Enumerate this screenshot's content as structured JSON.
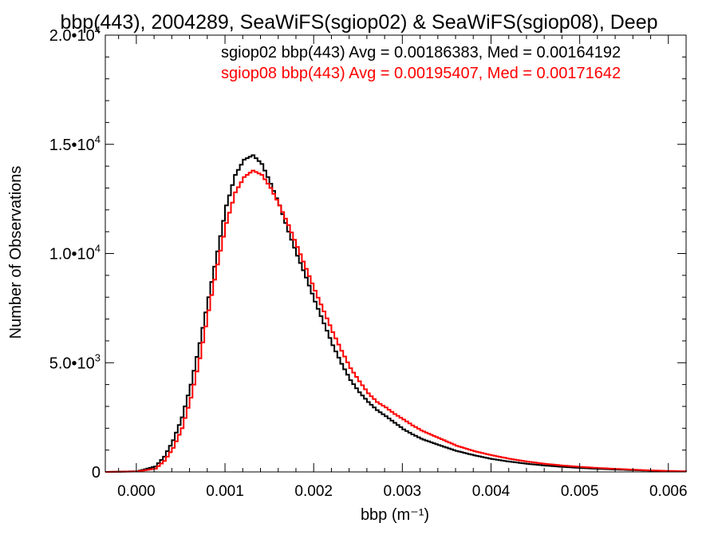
{
  "chart_data": {
    "type": "line",
    "title": "bbp(443), 2004289, SeaWiFS(sgiop02) & SeaWiFS(sgiop08), Deep",
    "xlabel": "bbp (m⁻¹)",
    "ylabel": "Number of Observations",
    "xlim": [
      -0.00035,
      0.0062
    ],
    "ylim": [
      0,
      20000
    ],
    "x_ticks": [
      0.0,
      0.001,
      0.002,
      0.003,
      0.004,
      0.005,
      0.006
    ],
    "x_tick_labels": [
      "0.000",
      "0.001",
      "0.002",
      "0.003",
      "0.004",
      "0.005",
      "0.006"
    ],
    "y_ticks": [
      0,
      5000,
      10000,
      15000,
      20000
    ],
    "y_tick_labels": [
      {
        "base": "0",
        "exp": ""
      },
      {
        "base": "5.0•10",
        "exp": "3"
      },
      {
        "base": "1.0•10",
        "exp": "4"
      },
      {
        "base": "1.5•10",
        "exp": "4"
      },
      {
        "base": "2.0•10",
        "exp": "4"
      }
    ],
    "step": true,
    "grid": false,
    "legend_position": "top-right",
    "series": [
      {
        "name": "sgiop02 bbp(443) Avg = 0.00186383, Med = 0.00164192",
        "color": "#000000",
        "x": [
          -0.00035,
          0.0,
          0.0002,
          0.0003,
          0.0004,
          0.0005,
          0.0006,
          0.0007,
          0.0008,
          0.0009,
          0.001,
          0.0011,
          0.0012,
          0.0013,
          0.0014,
          0.0015,
          0.0016,
          0.0017,
          0.0018,
          0.0019,
          0.002,
          0.0021,
          0.0022,
          0.0023,
          0.0024,
          0.0025,
          0.0026,
          0.0027,
          0.0028,
          0.0029,
          0.003,
          0.0031,
          0.0032,
          0.0034,
          0.0036,
          0.0038,
          0.004,
          0.0042,
          0.0044,
          0.0046,
          0.0048,
          0.005,
          0.0052,
          0.0054,
          0.0056,
          0.0058,
          0.006,
          0.0062
        ],
        "y": [
          0,
          30,
          250,
          700,
          1450,
          2500,
          4000,
          5900,
          8000,
          10100,
          12200,
          13600,
          14300,
          14500,
          14100,
          13200,
          12200,
          11000,
          9900,
          8900,
          7800,
          6800,
          5800,
          4950,
          4200,
          3650,
          3200,
          2830,
          2550,
          2250,
          1950,
          1720,
          1520,
          1230,
          960,
          760,
          590,
          470,
          370,
          290,
          230,
          180,
          140,
          110,
          80,
          55,
          35,
          20
        ]
      },
      {
        "name": "sgiop08 bbp(443) Avg = 0.00195407, Med = 0.00171642",
        "color": "#ff0000",
        "x": [
          -0.00035,
          0.0,
          0.0002,
          0.0003,
          0.0004,
          0.0005,
          0.0006,
          0.0007,
          0.0008,
          0.0009,
          0.001,
          0.0011,
          0.0012,
          0.0013,
          0.0014,
          0.0015,
          0.0016,
          0.0017,
          0.0018,
          0.0019,
          0.002,
          0.0021,
          0.0022,
          0.0023,
          0.0024,
          0.0025,
          0.0026,
          0.0027,
          0.0028,
          0.0029,
          0.003,
          0.0031,
          0.0032,
          0.0034,
          0.0036,
          0.0038,
          0.004,
          0.0042,
          0.0044,
          0.0046,
          0.0048,
          0.005,
          0.0052,
          0.0054,
          0.0056,
          0.0058,
          0.006,
          0.0062
        ],
        "y": [
          0,
          20,
          150,
          500,
          1100,
          2000,
          3400,
          5200,
          7400,
          9500,
          11400,
          12800,
          13500,
          13800,
          13600,
          13000,
          12200,
          11300,
          10300,
          9300,
          8300,
          7350,
          6400,
          5550,
          4750,
          4150,
          3600,
          3200,
          2950,
          2650,
          2400,
          2130,
          1900,
          1550,
          1200,
          950,
          760,
          600,
          470,
          370,
          290,
          230,
          180,
          140,
          100,
          70,
          45,
          25
        ]
      }
    ]
  }
}
